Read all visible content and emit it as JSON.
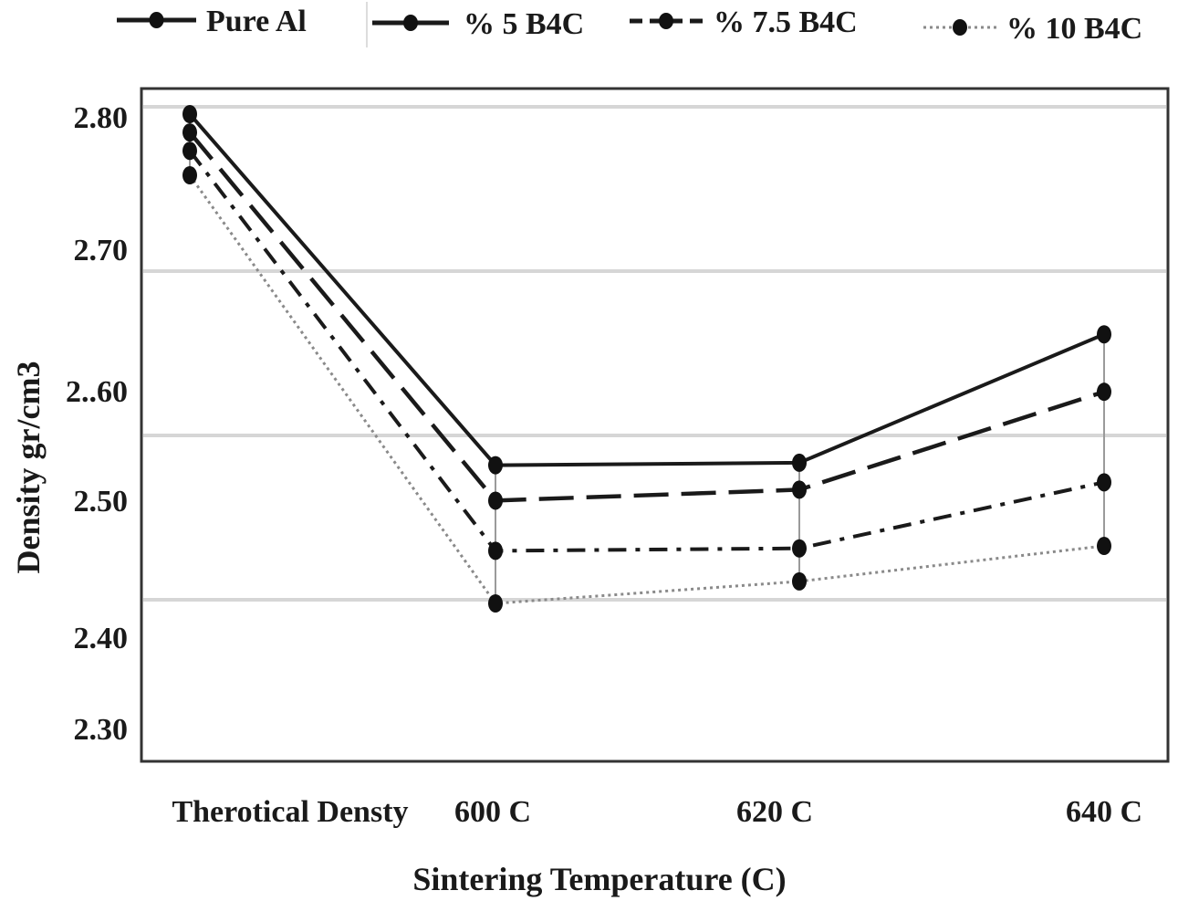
{
  "chart_data": {
    "type": "line",
    "categories": [
      "Therotical Densty",
      "600 C",
      "620 C",
      "640 C"
    ],
    "xlabel": "Sintering Temperature (C)",
    "ylabel": "Density gr/cm3",
    "ylim": [
      2.25,
      2.85
    ],
    "yticks": [
      {
        "value": 2.8,
        "label": "2.80"
      },
      {
        "value": 2.7,
        "label": "2.70"
      },
      {
        "value": 2.6,
        "label": "2..60"
      },
      {
        "value": 2.5,
        "label": "2.50"
      },
      {
        "value": 2.4,
        "label": "2.40"
      },
      {
        "value": 2.3,
        "label": "2.30"
      }
    ],
    "gridlines": [
      2.8,
      2.7,
      2.6,
      2.5
    ],
    "grid": true,
    "legend_position": "top",
    "series": [
      {
        "name": "Pure Al",
        "values": [
          2.8,
          2.513,
          2.515,
          2.62
        ],
        "dash": "solid",
        "color": "#1a1a1a"
      },
      {
        "name": "% 5 B4C",
        "values": [
          2.785,
          2.484,
          2.493,
          2.573
        ],
        "dash": "long-dash",
        "color": "#1a1a1a"
      },
      {
        "name": "% 7.5 B4C",
        "values": [
          2.77,
          2.443,
          2.445,
          2.499
        ],
        "dash": "dash-dot",
        "color": "#1a1a1a"
      },
      {
        "name": "% 10 B4C",
        "values": [
          2.75,
          2.4,
          2.418,
          2.447
        ],
        "dash": "dotted",
        "color": "#8a8a8a"
      }
    ]
  }
}
